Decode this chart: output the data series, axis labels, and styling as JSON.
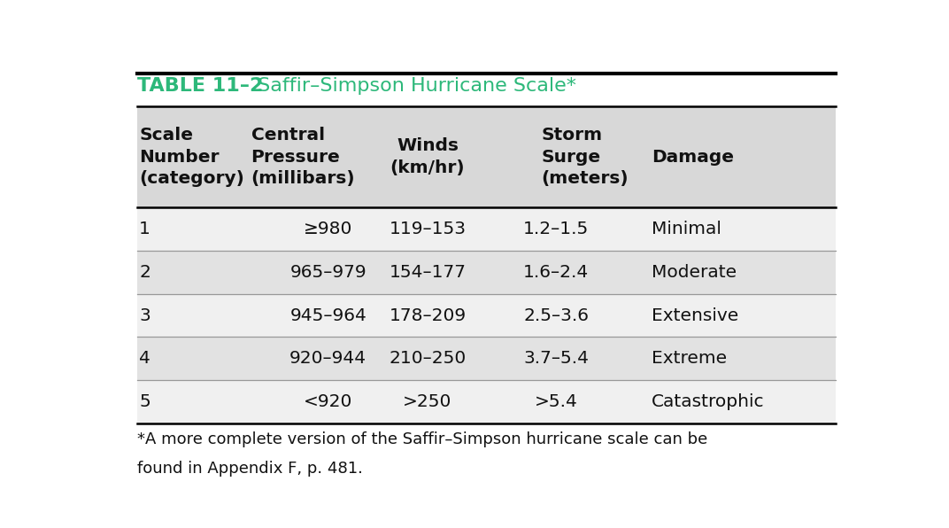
{
  "title_bold": "TABLE 11–2",
  "title_teal": " Saffir–Simpson Hurricane Scale*",
  "title_fontsize": 16,
  "header_texts": [
    "Scale\nNumber\n(category)",
    "Central\nPressure\n(millibars)",
    "Winds\n(km/hr)",
    "Storm\nSurge\n(meters)",
    "Damage"
  ],
  "rows": [
    [
      "1",
      "≥980",
      "119–153",
      "1.2–1.5",
      "Minimal"
    ],
    [
      "2",
      "965–979",
      "154–177",
      "1.6–2.4",
      "Moderate"
    ],
    [
      "3",
      "945–964",
      "178–209",
      "2.5–3.6",
      "Extensive"
    ],
    [
      "4",
      "920–944",
      "210–250",
      "3.7–5.4",
      "Extreme"
    ],
    [
      "5",
      "<920",
      ">250",
      ">5.4",
      "Catastrophic"
    ]
  ],
  "footnote_line1": "*A more complete version of the Saffir–Simpson hurricane scale can be",
  "footnote_line2": "found in Appendix F, p. 481.",
  "teal_color": "#2db87a",
  "black_color": "#111111",
  "header_bg": "#d8d8d8",
  "row_bg_odd": "#f0f0f0",
  "row_bg_even": "#e2e2e2",
  "separator_color": "#999999",
  "body_fontsize": 14.5,
  "header_fontsize": 14.5,
  "footnote_fontsize": 13,
  "background_color": "#ffffff"
}
